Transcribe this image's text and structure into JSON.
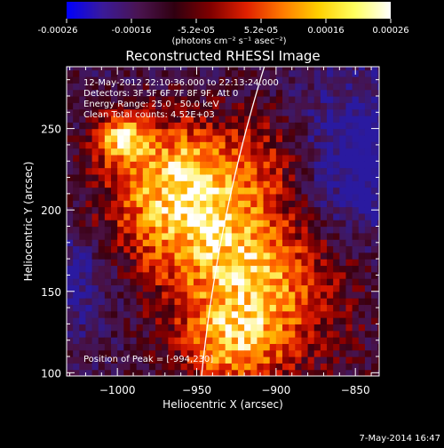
{
  "chart_data": {
    "type": "heatmap",
    "title": "Reconstructed RHESSI Image",
    "xlabel": "Heliocentric X (arcsec)",
    "ylabel": "Heliocentric Y (arcsec)",
    "xlim": [
      -1032,
      -835
    ],
    "ylim": [
      98,
      288
    ],
    "x_ticks": [
      -1000,
      -950,
      -900,
      -850
    ],
    "x_tick_labels": [
      "−1000",
      "−950",
      "−900",
      "−850"
    ],
    "y_ticks": [
      100,
      150,
      200,
      250
    ],
    "y_tick_labels": [
      "100",
      "150",
      "200",
      "250"
    ],
    "annotations": [
      "12-May-2012 22:10:36.000 to 22:13:24.000",
      "Detectors: 3F 5F 6F 7F 8F 9F, Att 0",
      "Energy Range: 25.0 - 50.0 keV",
      "Clean     Total counts: 4.52E+03"
    ],
    "peak_label": "Position of Peak = [-994,230]",
    "peak": [
      -994,
      230
    ],
    "colorbar": {
      "min": -0.00026,
      "max": 0.00026,
      "tick_labels": [
        "-0.00026",
        "-0.00016",
        "-5.2e-05",
        "5.2e-05",
        "0.00016",
        "0.00026"
      ],
      "label": "(photons cm⁻² s⁻¹ asec⁻²)",
      "colors": [
        "#0000ff",
        "#3a1a9a",
        "#4a1450",
        "#300010",
        "#800000",
        "#e02000",
        "#ff7a00",
        "#ffd000",
        "#ffff60",
        "#ffffff"
      ]
    },
    "limb_color": "#ffffff",
    "grid_resolution_arcsec": 4
  },
  "footer": {
    "date": "7-May-2014 16:47"
  }
}
